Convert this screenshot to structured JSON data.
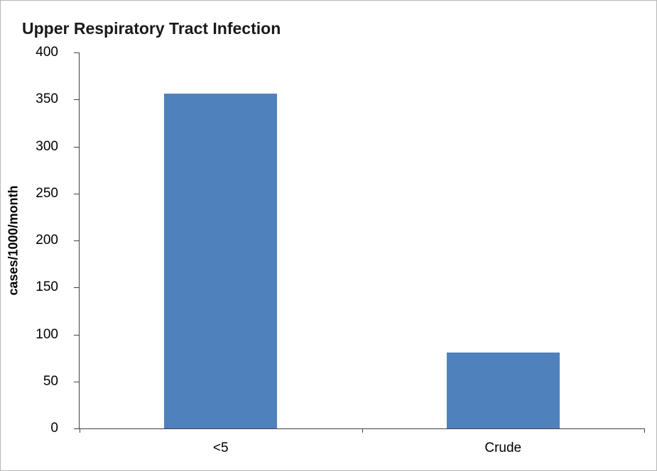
{
  "chart": {
    "title": "Upper Respiratory Tract Infection",
    "ylabel": "cases/1000/month"
  },
  "chart_data": {
    "type": "bar",
    "title": "Upper Respiratory Tract Infection",
    "xlabel": "",
    "ylabel": "cases/1000/month",
    "categories": [
      "<5",
      "Crude"
    ],
    "values": [
      356,
      81
    ],
    "ylim": [
      0,
      400
    ],
    "ytick_step": 50,
    "ytick_labels": [
      "0",
      "50",
      "100",
      "150",
      "200",
      "250",
      "300",
      "350",
      "400"
    ],
    "bar_color": "#4F81BD",
    "grid": false,
    "legend": false
  }
}
